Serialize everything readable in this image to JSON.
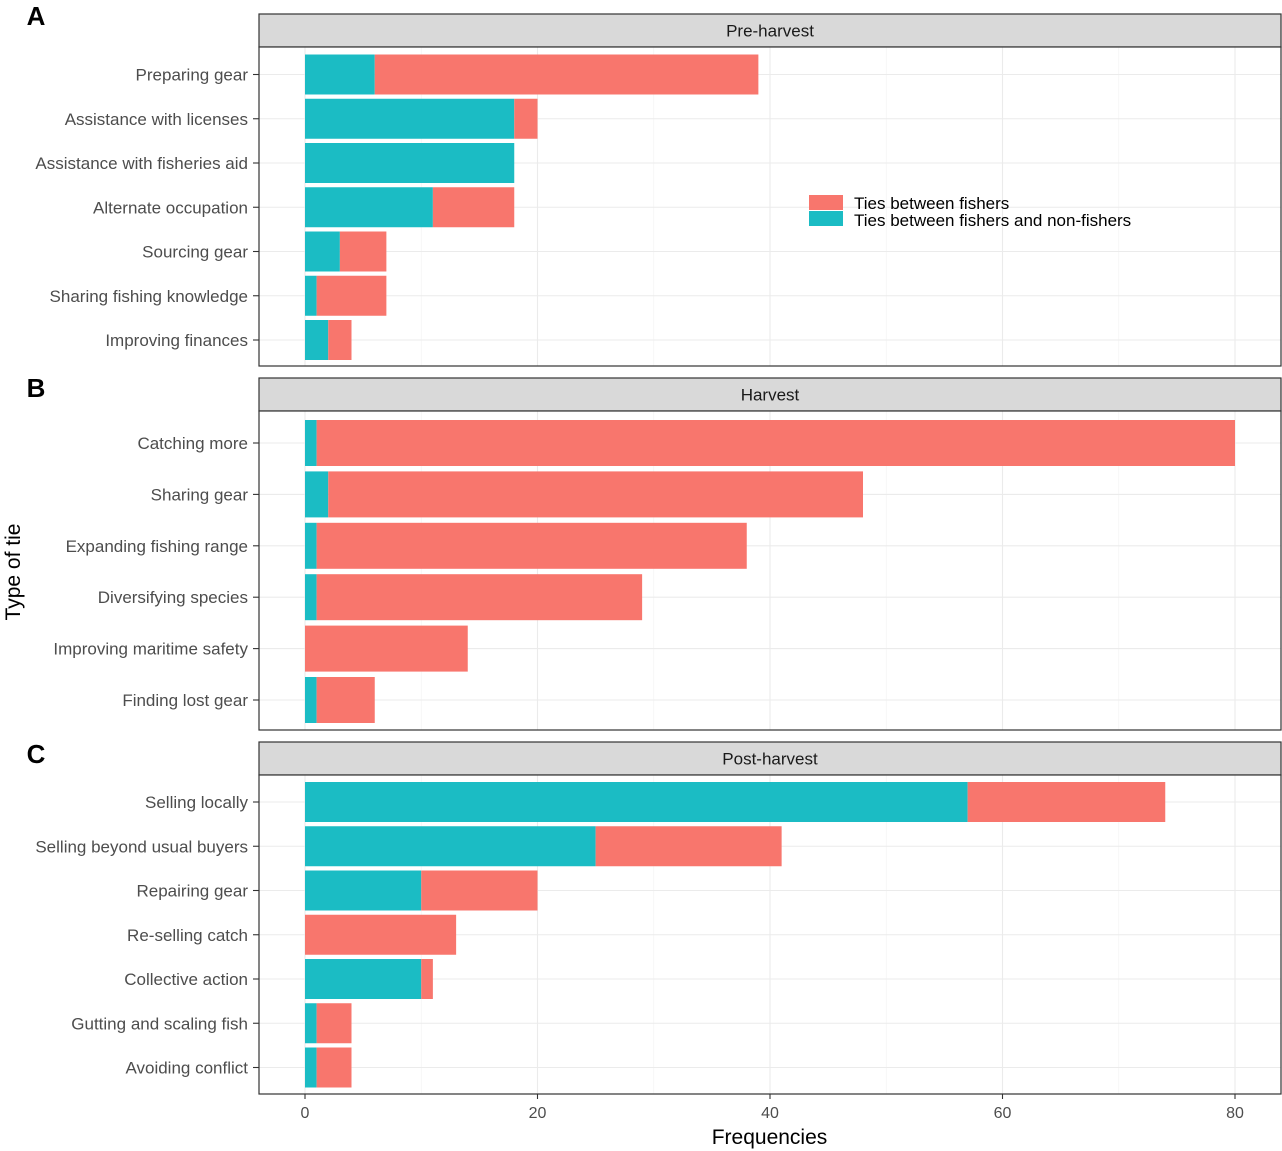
{
  "chart_data": {
    "type": "bar",
    "orientation": "horizontal",
    "stacked": true,
    "xlabel": "Frequencies",
    "ylabel": "Type of tie",
    "xlim": [
      0,
      84
    ],
    "xticks": [
      0,
      20,
      40,
      60,
      80
    ],
    "grid": true,
    "legend": {
      "placement": "inside, upper panel, right",
      "entries": [
        {
          "name": "Ties between fishers",
          "color": "#F8766D"
        },
        {
          "name": "Ties between fishers and non-fishers",
          "color": "#1BBCC4"
        }
      ]
    },
    "panels": [
      {
        "letter": "A",
        "title": "Pre-harvest",
        "categories": [
          "Preparing gear",
          "Assistance with licenses",
          "Assistance with fisheries aid",
          "Alternate occupation",
          "Sourcing gear",
          "Sharing fishing knowledge",
          "Improving finances"
        ],
        "series": [
          {
            "name": "Ties between fishers and non-fishers",
            "values": [
              6,
              18,
              18,
              11,
              3,
              1,
              2
            ]
          },
          {
            "name": "Ties between fishers",
            "values": [
              33,
              2,
              0,
              7,
              4,
              6,
              2
            ]
          }
        ]
      },
      {
        "letter": "B",
        "title": "Harvest",
        "categories": [
          "Catching more",
          "Sharing gear",
          "Expanding fishing range",
          "Diversifying species",
          "Improving maritime safety",
          "Finding lost gear"
        ],
        "series": [
          {
            "name": "Ties between fishers and non-fishers",
            "values": [
              1,
              2,
              1,
              1,
              0,
              1
            ]
          },
          {
            "name": "Ties between fishers",
            "values": [
              79,
              46,
              37,
              28,
              14,
              5
            ]
          }
        ]
      },
      {
        "letter": "C",
        "title": "Post-harvest",
        "categories": [
          "Selling locally",
          "Selling beyond usual buyers",
          "Repairing gear",
          "Re-selling catch",
          "Collective action",
          "Gutting and scaling fish",
          "Avoiding conflict"
        ],
        "series": [
          {
            "name": "Ties between fishers and non-fishers",
            "values": [
              57,
              25,
              10,
              0,
              10,
              1,
              1
            ]
          },
          {
            "name": "Ties between fishers",
            "values": [
              17,
              16,
              10,
              13,
              1,
              3,
              3
            ]
          }
        ]
      }
    ]
  }
}
